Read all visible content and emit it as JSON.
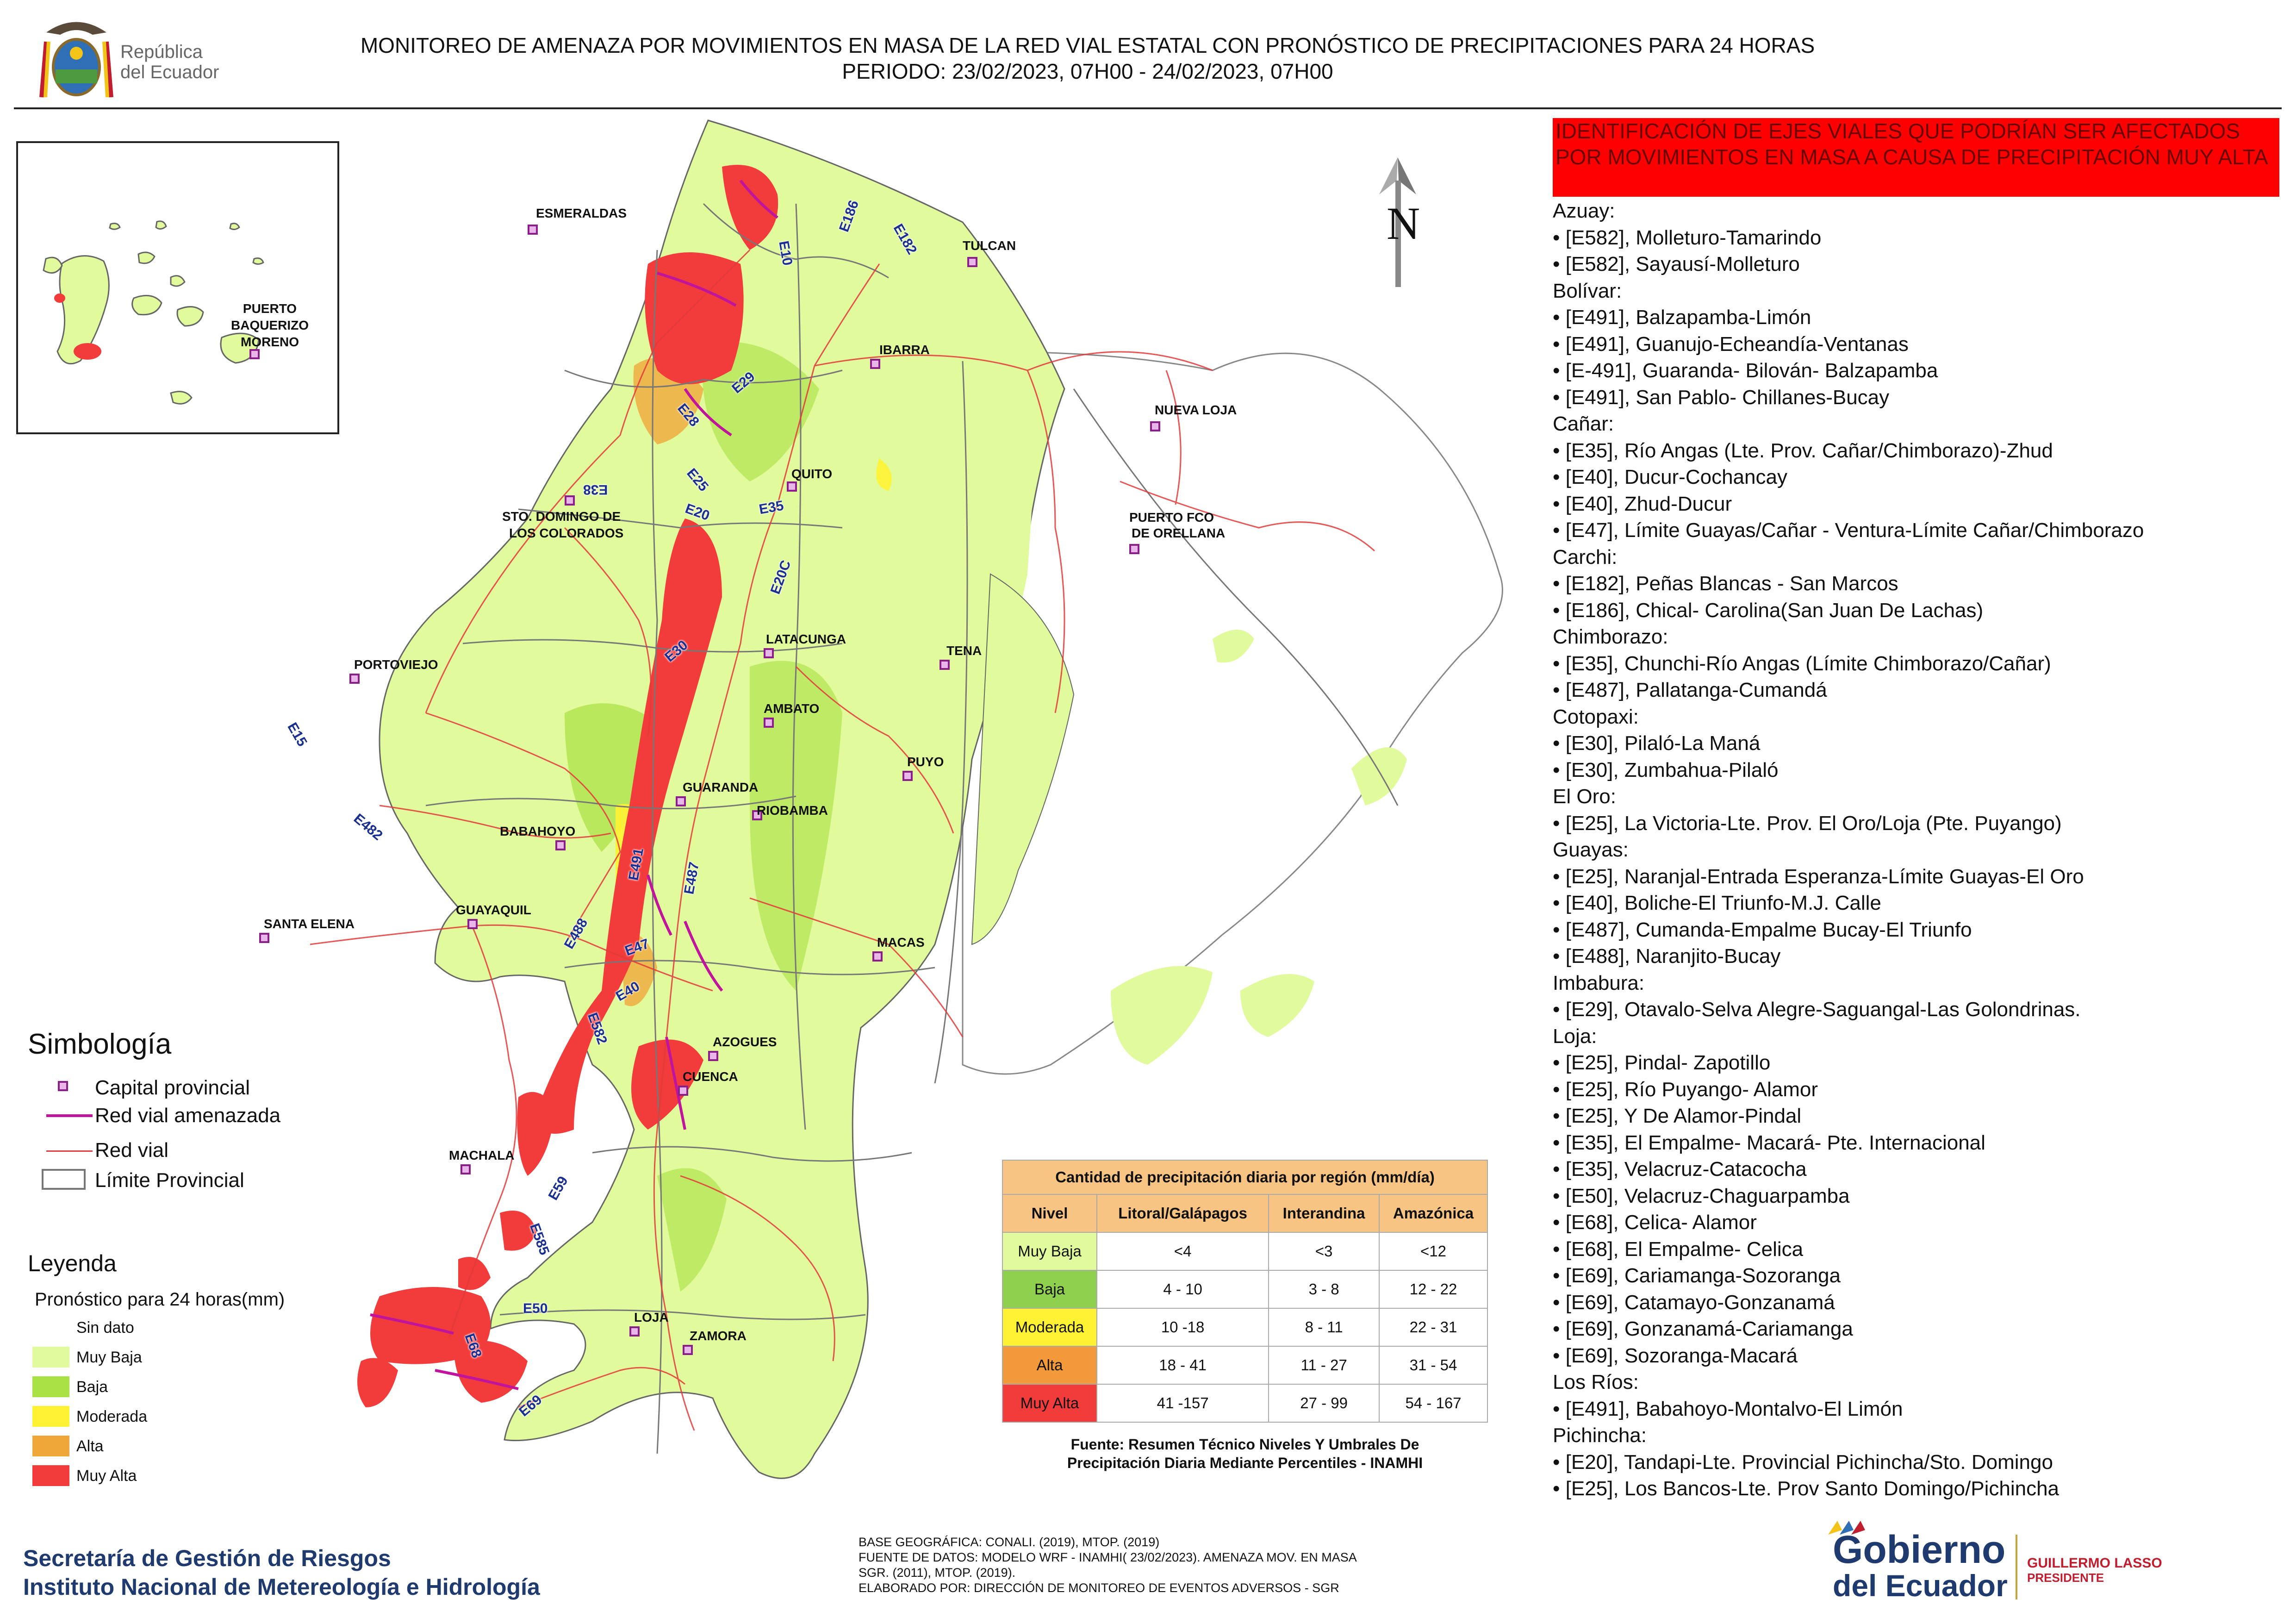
{
  "header": {
    "title_line1": "MONITOREO DE AMENAZA POR MOVIMIENTOS EN MASA DE LA RED VIAL  ESTATAL  CON PRONÓSTICO  DE  PRECIPITACIONES PARA 24 HORAS",
    "title_line2": "PERIODO: 23/02/2023, 07H00 - 24/02/2023, 07H00",
    "logo_text_line1": "República",
    "logo_text_line2": "del Ecuador"
  },
  "north_arrow": {
    "label": "N"
  },
  "inset": {
    "label_line1": "PUERTO",
    "label_line2": "BAQUERIZO",
    "label_line3": "MORENO"
  },
  "cities": [
    {
      "name": "ESMERALDAS"
    },
    {
      "name": "TULCAN"
    },
    {
      "name": "IBARRA"
    },
    {
      "name": "NUEVA LOJA"
    },
    {
      "name": "QUITO"
    },
    {
      "name": "STO. DOMINGO DE"
    },
    {
      "name": "LOS COLORADOS"
    },
    {
      "name": "PUERTO FCO"
    },
    {
      "name": "DE ORELLANA"
    },
    {
      "name": "PORTOVIEJO"
    },
    {
      "name": "LATACUNGA"
    },
    {
      "name": "TENA"
    },
    {
      "name": "AMBATO"
    },
    {
      "name": "GUARANDA"
    },
    {
      "name": "PUYO"
    },
    {
      "name": "RIOBAMBA"
    },
    {
      "name": "BABAHOYO"
    },
    {
      "name": "SANTA ELENA"
    },
    {
      "name": "GUAYAQUIL"
    },
    {
      "name": "MACAS"
    },
    {
      "name": "AZOGUES"
    },
    {
      "name": "CUENCA"
    },
    {
      "name": "MACHALA"
    },
    {
      "name": "LOJA"
    },
    {
      "name": "ZAMORA"
    }
  ],
  "road_codes": [
    "E182",
    "E186",
    "E10",
    "E29",
    "E28",
    "E25",
    "E38",
    "E20",
    "E35",
    "E20C",
    "E30",
    "E15",
    "E482",
    "E491",
    "E487",
    "E488",
    "E47",
    "E40",
    "E582",
    "E59",
    "E585",
    "E50",
    "E68",
    "E69"
  ],
  "legend": {
    "title": "Simbología",
    "items": [
      {
        "label": "Capital provincial"
      },
      {
        "label": "Red vial amenazada"
      },
      {
        "label": "Red vial"
      },
      {
        "label": "Límite Provincial"
      }
    ],
    "leyenda_title": "Leyenda",
    "forecast_title": "Pronóstico para 24 horas(mm)",
    "classes": [
      {
        "label": "Sin dato",
        "color": "#ffffff"
      },
      {
        "label": " Muy Baja",
        "color": "#e0fa9c"
      },
      {
        "label": "Baja",
        "color": "#a9e043"
      },
      {
        "label": "Moderada",
        "color": "#fff233"
      },
      {
        "label": "Alta",
        "color": "#f0a73a"
      },
      {
        "label": "Muy Alta",
        "color": "#f23c3c"
      }
    ]
  },
  "precip_table": {
    "caption": "Cantidad de precipitación diaria por región (mm/día)",
    "headers": [
      "Nivel",
      "Litoral/Galápagos",
      "Interandina",
      "Amazónica"
    ],
    "rows": [
      {
        "nivel": "Muy Baja",
        "color": "#e0fa9c",
        "litoral": "<4",
        "interandina": "<3",
        "amazonica": "<12"
      },
      {
        "nivel": "Baja",
        "color": "#8fd14f",
        "litoral": "4 - 10",
        "interandina": "3 - 8",
        "amazonica": "12 - 22"
      },
      {
        "nivel": "Moderada",
        "color": "#fff233",
        "litoral": "10 -18",
        "interandina": "8 - 11",
        "amazonica": "22 - 31"
      },
      {
        "nivel": "Alta",
        "color": "#f29a3a",
        "litoral": "18 - 41",
        "interandina": "11 - 27",
        "amazonica": "31 - 54"
      },
      {
        "nivel": "Muy Alta",
        "color": "#f23c3c",
        "litoral": "41 -157",
        "interandina": "27 - 99",
        "amazonica": "54 - 167"
      }
    ],
    "source_line1": "Fuente: Resumen Técnico Niveles Y Umbrales De",
    "source_line2": "Precipitación Diaria Mediante Percentiles - INAMHI"
  },
  "right_panel": {
    "header": "IDENTIFICACIÓN DE EJES VIALES QUE PODRÍAN SER AFECTADOS POR MOVIMIENTOS EN MASA A CAUSA DE PRECIPITACIÓN MUY ALTA",
    "provinces": [
      {
        "name": "Azuay:",
        "roads": [
          "• [E582], Molleturo-Tamarindo",
          "• [E582], Sayausí-Molleturo"
        ]
      },
      {
        "name": "Bolívar:",
        "roads": [
          "• [E491], Balzapamba-Limón",
          "• [E491], Guanujo-Echeandía-Ventanas",
          "• [E-491], Guaranda- Bilován- Balzapamba",
          "• [E491], San Pablo- Chillanes-Bucay"
        ]
      },
      {
        "name": "Cañar:",
        "roads": [
          "• [E35], Río Angas (Lte. Prov. Cañar/Chimborazo)-Zhud",
          "• [E40], Ducur-Cochancay",
          "• [E40], Zhud-Ducur",
          "• [E47], Límite Guayas/Cañar - Ventura-Límite Cañar/Chimborazo"
        ]
      },
      {
        "name": "Carchi:",
        "roads": [
          "• [E182], Peñas Blancas - San Marcos",
          "• [E186], Chical- Carolina(San Juan De Lachas)"
        ]
      },
      {
        "name": "Chimborazo:",
        "roads": [
          "• [E35], Chunchi-Río Angas (Límite Chimborazo/Cañar)",
          "• [E487], Pallatanga-Cumandá"
        ]
      },
      {
        "name": "Cotopaxi:",
        "roads": [
          "• [E30], Pilaló-La Maná",
          "• [E30], Zumbahua-Pilaló"
        ]
      },
      {
        "name": "El Oro:",
        "roads": [
          "• [E25], La Victoria-Lte. Prov. El Oro/Loja (Pte. Puyango)"
        ]
      },
      {
        "name": "Guayas:",
        "roads": [
          "• [E25], Naranjal-Entrada Esperanza-Límite Guayas-El Oro",
          "• [E40], Boliche-El Triunfo-M.J. Calle",
          "• [E487], Cumanda-Empalme Bucay-El Triunfo",
          "• [E488], Naranjito-Bucay"
        ]
      },
      {
        "name": "Imbabura:",
        "roads": [
          "• [E29], Otavalo-Selva Alegre-Saguangal-Las Golondrinas."
        ]
      },
      {
        "name": "Loja:",
        "roads": [
          "• [E25], Pindal- Zapotillo",
          "• [E25], Río Puyango- Alamor",
          "• [E25], Y De Alamor-Pindal",
          "• [E35], El Empalme- Macará- Pte. Internacional",
          "• [E35], Velacruz-Catacocha",
          "• [E50], Velacruz-Chaguarpamba",
          "• [E68], Celica- Alamor",
          "• [E68], El Empalme- Celica",
          "• [E69], Cariamanga-Sozoranga",
          "• [E69], Catamayo-Gonzanamá",
          "• [E69], Gonzanamá-Cariamanga",
          "• [E69], Sozoranga-Macará"
        ]
      },
      {
        "name": "Los Ríos:",
        "roads": [
          "• [E491], Babahoyo-Montalvo-El Limón"
        ]
      },
      {
        "name": "Pichincha:",
        "roads": [
          "• [E20], Tandapi-Lte. Provincial Pichincha/Sto. Domingo",
          "• [E25], Los Bancos-Lte. Prov Santo Domingo/Pichincha"
        ]
      }
    ]
  },
  "footer": {
    "agency_line1": "Secretaría de Gestión de Riesgos",
    "agency_line2": "Instituto Nacional de Metereología e Hidrología",
    "base_line1": "BASE GEOGRÁFICA: CONALI. (2019), MTOP. (2019)",
    "base_line2": "FUENTE DE DATOS: MODELO WRF - INAMHI( 23/02/2023).  AMENAZA MOV. EN MASA",
    "base_line3": "SGR. (2011), MTOP. (2019).",
    "base_line4": "ELABORADO POR: DIRECCIÓN DE MONITOREO DE EVENTOS ADVERSOS - SGR",
    "gob_line1": "Gobierno",
    "gob_line2": "del Ecuador",
    "gob_person": "GUILLERMO LASSO",
    "gob_role": "PRESIDENTE"
  }
}
